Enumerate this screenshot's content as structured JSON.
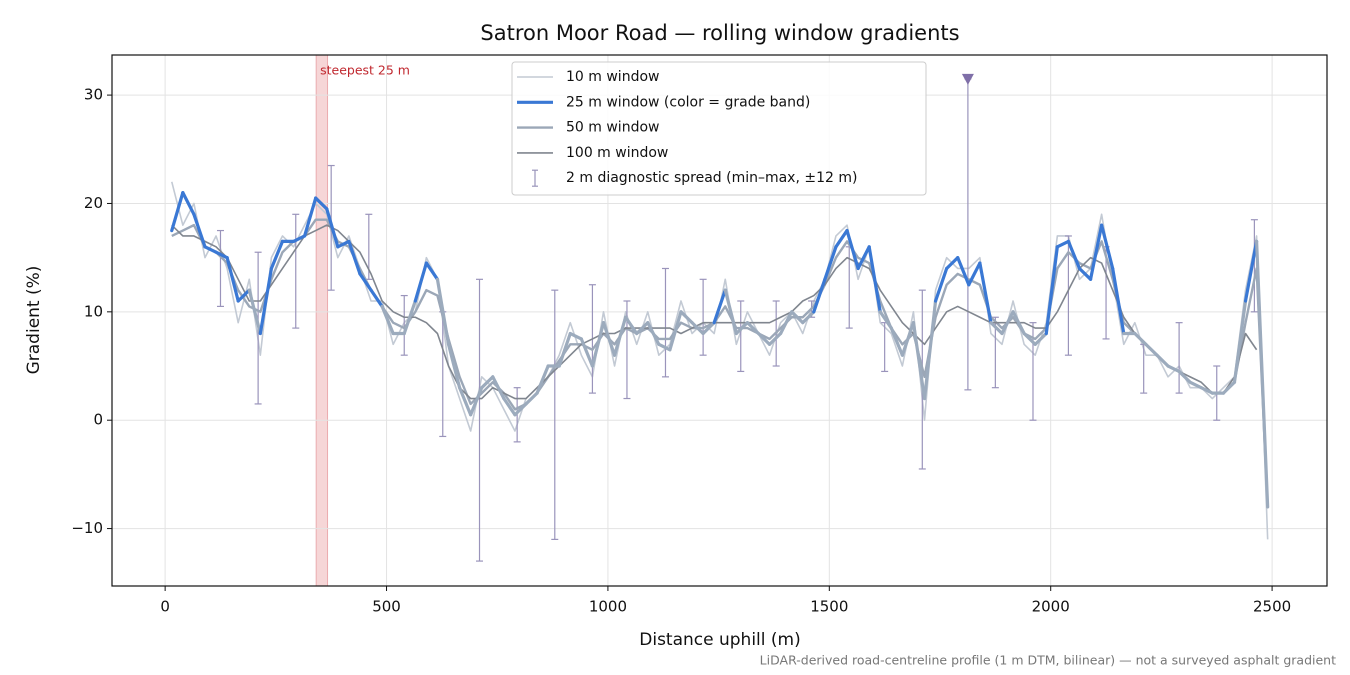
{
  "chart_data": {
    "type": "line",
    "title": "Satron Moor Road — rolling window gradients",
    "x_label": "Distance uphill (m)",
    "y_label": "Gradient (%)",
    "footnote": "LiDAR-derived road-centreline profile (1 m DTM, bilinear) — not a surveyed asphalt gradient",
    "xlim": [
      -120,
      2624
    ],
    "ylim": [
      -15.3,
      33.7
    ],
    "xticks": [
      0,
      500,
      1000,
      1500,
      2000,
      2500
    ],
    "yticks": [
      {
        "value": -10,
        "label": "−10"
      },
      0,
      10,
      20,
      30
    ],
    "grid": true,
    "legend": "upper center",
    "x": [
      15,
      40,
      65,
      90,
      115,
      140,
      165,
      190,
      215,
      240,
      265,
      290,
      315,
      340,
      365,
      390,
      415,
      440,
      465,
      490,
      515,
      540,
      565,
      590,
      615,
      640,
      665,
      690,
      715,
      740,
      765,
      790,
      815,
      840,
      865,
      890,
      915,
      940,
      965,
      990,
      1015,
      1040,
      1065,
      1090,
      1115,
      1140,
      1165,
      1190,
      1215,
      1240,
      1265,
      1290,
      1315,
      1340,
      1365,
      1390,
      1415,
      1440,
      1465,
      1490,
      1515,
      1540,
      1565,
      1590,
      1615,
      1640,
      1665,
      1690,
      1715,
      1740,
      1765,
      1790,
      1815,
      1840,
      1865,
      1890,
      1915,
      1940,
      1965,
      1990,
      2015,
      2040,
      2065,
      2090,
      2115,
      2140,
      2165,
      2190,
      2215,
      2240,
      2265,
      2290,
      2315,
      2340,
      2365,
      2390,
      2415,
      2440,
      2465,
      2490
    ],
    "series": [
      {
        "name": "10 m window",
        "color": "#c3cad4",
        "width": 1.6,
        "values": [
          22,
          18,
          20,
          15,
          17,
          14,
          9,
          13,
          6,
          15,
          17,
          16,
          18,
          20,
          19,
          15,
          17,
          14,
          11,
          11,
          7,
          9,
          10,
          15,
          13,
          5,
          2,
          -1,
          4,
          3,
          1,
          -1,
          2,
          3,
          4,
          6,
          9,
          6,
          4,
          10,
          5,
          10,
          7,
          10,
          6,
          7,
          11,
          8,
          9,
          8,
          13,
          7,
          10,
          8,
          6,
          9,
          10,
          8,
          11,
          13,
          17,
          18,
          13,
          16,
          9,
          8,
          5,
          10,
          0,
          12,
          15,
          14,
          14,
          15,
          8,
          7,
          11,
          7,
          6,
          9,
          17,
          17,
          13,
          14,
          19,
          13,
          7,
          9,
          6,
          6,
          4,
          5,
          3,
          3,
          2,
          3,
          4,
          12,
          17,
          -11
        ]
      },
      {
        "name": "50 m window",
        "color": "#9ba7b7",
        "width": 2.4,
        "values": [
          17,
          17.5,
          18,
          16,
          15.5,
          14.5,
          12,
          10.5,
          10,
          13,
          15.5,
          16.5,
          17,
          18.5,
          18.5,
          16.5,
          16,
          14,
          12,
          10.5,
          9,
          8.5,
          10,
          12,
          11.5,
          7.5,
          4,
          1.5,
          2.5,
          3.5,
          2.5,
          1,
          1.5,
          2.5,
          4,
          5.5,
          7,
          7,
          6.5,
          8,
          7,
          8.5,
          8,
          8.5,
          7.5,
          7.5,
          9,
          8.5,
          8.5,
          9,
          10.5,
          8.5,
          8.5,
          8,
          7.5,
          8.5,
          9.5,
          9.5,
          10.5,
          12.5,
          15,
          16.5,
          15,
          14.5,
          11,
          8.5,
          7,
          8,
          4,
          9.5,
          12.5,
          13.5,
          13,
          12.5,
          9.5,
          8.5,
          9.5,
          8,
          7.5,
          8.5,
          14,
          15.5,
          14.5,
          14,
          16.5,
          13,
          9,
          8,
          7,
          6,
          5,
          4.5,
          3.5,
          3,
          2.5,
          2.5,
          3.5,
          9,
          14,
          -8
        ]
      },
      {
        "name": "100 m window",
        "color": "#80868f",
        "width": 1.6,
        "values": [
          18,
          17,
          17,
          16.5,
          16,
          15,
          13,
          11,
          11,
          12.5,
          14,
          15.5,
          17,
          17.5,
          18,
          17.5,
          16.5,
          15.5,
          13.5,
          11,
          10,
          9.5,
          9.5,
          9,
          8,
          5,
          3,
          2,
          2,
          3,
          2.5,
          2,
          2,
          3,
          4,
          5,
          6,
          7,
          7.5,
          8,
          8,
          8.5,
          8.5,
          8.5,
          8.5,
          8.5,
          8,
          8.5,
          9,
          9,
          9,
          9,
          9,
          9,
          9,
          9.5,
          10,
          11,
          11.5,
          12.5,
          14,
          15,
          14.5,
          14,
          12,
          10.5,
          9,
          8,
          7,
          8.5,
          10,
          10.5,
          10,
          9.5,
          9,
          9,
          9,
          9,
          8.5,
          8.5,
          10,
          12,
          14,
          15,
          14.5,
          12,
          9.5,
          8,
          7,
          6,
          5,
          4.5,
          4,
          3.5,
          2.5,
          2.5,
          4,
          8,
          6.5,
          null
        ]
      },
      {
        "name": "25 m window (color = grade band)",
        "color": "#3a78d4",
        "width": 3.2,
        "band_edges": [
          10,
          20
        ],
        "band_colors": [
          "#9cabbd",
          "#3a78d4",
          "#e08a00"
        ],
        "values": [
          17.5,
          21,
          19,
          16,
          15.5,
          15,
          11,
          12,
          8,
          14,
          16.5,
          16.5,
          17,
          20.5,
          19.5,
          16,
          16.5,
          13.5,
          12,
          10.5,
          8,
          8,
          11,
          14.5,
          13,
          7,
          3,
          0.5,
          3,
          4,
          2,
          0.5,
          1.5,
          2.5,
          5,
          5,
          8,
          7.5,
          5,
          9,
          6,
          9.5,
          8,
          9,
          7,
          6.5,
          10,
          9,
          8,
          9,
          12,
          8,
          9,
          8,
          7,
          8,
          10,
          9,
          10,
          13,
          16,
          17.5,
          14,
          16,
          10,
          8.5,
          6,
          9,
          2,
          11,
          14,
          15,
          12.5,
          14.5,
          9,
          8,
          10,
          8,
          7,
          8,
          16,
          16.5,
          14,
          13,
          18,
          14,
          8,
          8,
          7,
          6,
          5,
          4.5,
          3.5,
          3,
          2.5,
          2.5,
          3.5,
          11,
          16.5,
          -8
        ]
      }
    ],
    "legend_order": [
      0,
      3,
      1,
      2
    ],
    "errorbars": {
      "name": "2 m diagnostic spread (min–max, ±12 m)",
      "color": "#9a94bb",
      "x": [
        125,
        210,
        295,
        375,
        460,
        540,
        627,
        710,
        795,
        880,
        965,
        1043,
        1130,
        1215,
        1300,
        1380,
        1460,
        1545,
        1625,
        1710,
        1813,
        1875,
        1960,
        2040,
        2125,
        2210,
        2290,
        2375,
        2460
      ],
      "low": [
        10.5,
        1.5,
        8.5,
        12,
        13,
        6,
        -1.5,
        -13,
        -2,
        -11,
        2.5,
        2,
        4,
        6,
        4.5,
        5,
        9.5,
        8.5,
        4.5,
        -4.5,
        2.8,
        3,
        0,
        6,
        7.5,
        2.5,
        2.5,
        0,
        10
      ],
      "high": [
        17.5,
        15.5,
        19,
        23.5,
        19,
        11.5,
        10,
        13,
        3,
        12,
        12.5,
        11,
        14,
        13,
        11,
        11,
        11,
        16,
        9,
        12,
        31.5,
        9.5,
        9,
        17,
        16,
        7,
        9,
        5,
        18.5
      ]
    },
    "marker": {
      "x": 1813,
      "y": 31.5,
      "color": "#7f6fa8"
    },
    "span": {
      "label": "steepest 25 m",
      "range": [
        341,
        367
      ],
      "color": "#f2c4c6",
      "label_color": "#c0282f"
    }
  }
}
